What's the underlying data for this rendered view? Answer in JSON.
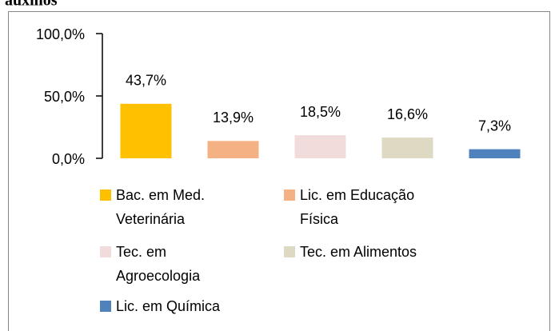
{
  "chart_data": {
    "type": "bar",
    "caption": "auxílios",
    "categories": [
      "Bac. em Med. Veterinária",
      "Lic. em Educação Física",
      "Tec. em Agroecologia",
      "Tec. em Alimentos",
      "Lic. em Química"
    ],
    "values": [
      43.7,
      13.9,
      18.5,
      16.6,
      7.3
    ],
    "value_labels": [
      "43,7%",
      "13,9%",
      "18,5%",
      "16,6%",
      "7,3%"
    ],
    "colors": [
      "#FFC000",
      "#F4B183",
      "#F2DCDB",
      "#DDD9C3",
      "#4F81BD"
    ],
    "ylim": [
      0,
      100
    ],
    "yticks": [
      {
        "value": 0,
        "label": "0,0%"
      },
      {
        "value": 50,
        "label": "50,0%"
      },
      {
        "value": 100,
        "label": "100,0%"
      }
    ],
    "legend": "bottom"
  }
}
